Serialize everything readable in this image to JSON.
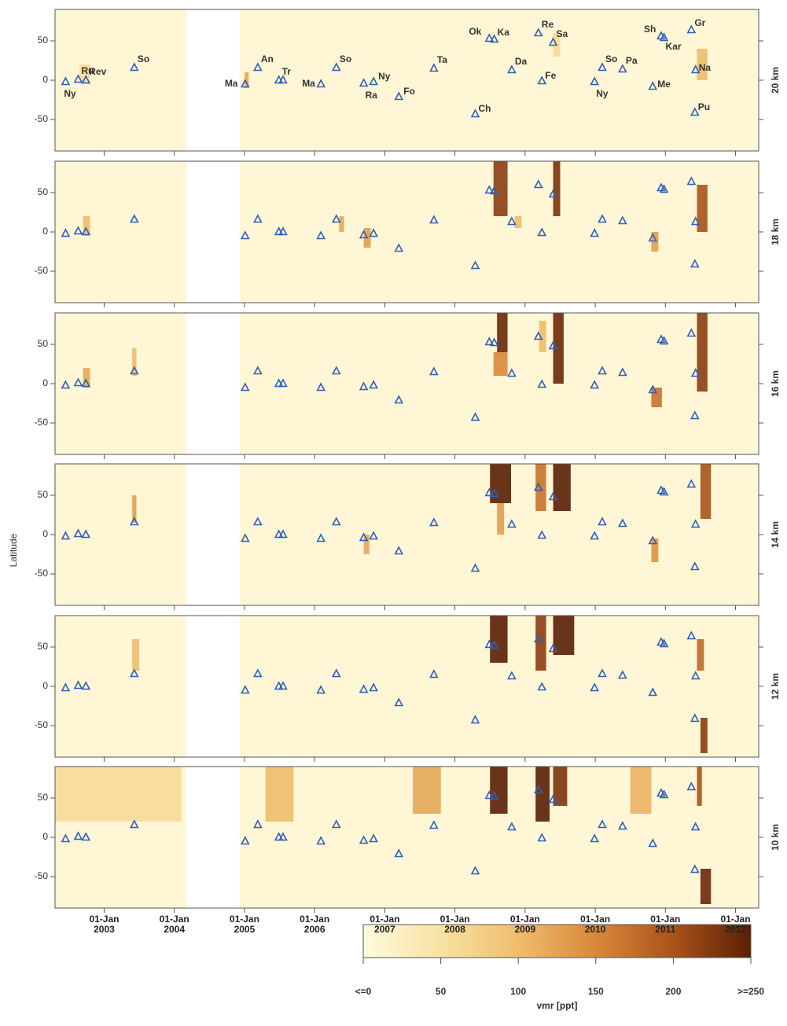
{
  "chart_data": {
    "type": "heatmap",
    "y_label": "Latitude",
    "xlim": [
      2002.3,
      2012.33
    ],
    "xticks": [
      {
        "value": 2003,
        "label": "01-Jan\n2003"
      },
      {
        "value": 2004,
        "label": "01-Jan\n2004"
      },
      {
        "value": 2005,
        "label": "01-Jan\n2005"
      },
      {
        "value": 2006,
        "label": "01-Jan\n2006"
      },
      {
        "value": 2007,
        "label": "01-Jan\n2007"
      },
      {
        "value": 2008,
        "label": "01-Jan\n2008"
      },
      {
        "value": 2009,
        "label": "01-Jan\n2009"
      },
      {
        "value": 2010,
        "label": "01-Jan\n2010"
      },
      {
        "value": 2011,
        "label": "01-Jan\n2011"
      },
      {
        "value": 2012,
        "label": "01-Jan\n2012"
      }
    ],
    "ylim": [
      -90,
      90
    ],
    "yticks": [
      -50,
      0,
      50
    ],
    "data_gaps": [
      [
        2004.17,
        2004.93
      ]
    ],
    "volcanoes": [
      {
        "name": "Ny",
        "x": 2002.45,
        "lat": -2
      },
      {
        "name": "Ru",
        "x": 2002.63,
        "lat": 1
      },
      {
        "name": "Rev",
        "x": 2002.74,
        "lat": 0
      },
      {
        "name": "So",
        "x": 2003.43,
        "lat": 16
      },
      {
        "name": "Ma",
        "x": 2005.01,
        "lat": -5
      },
      {
        "name": "An",
        "x": 2005.19,
        "lat": 16
      },
      {
        "name": "Tr",
        "x": 2005.49,
        "lat": 0
      },
      {
        "name": null,
        "x": 2005.55,
        "lat": 0
      },
      {
        "name": "Ma",
        "x": 2006.09,
        "lat": -5
      },
      {
        "name": "So",
        "x": 2006.31,
        "lat": 16
      },
      {
        "name": "Ra",
        "x": 2006.7,
        "lat": -4
      },
      {
        "name": "Ny",
        "x": 2006.84,
        "lat": -2
      },
      {
        "name": "Fo",
        "x": 2007.2,
        "lat": -21
      },
      {
        "name": "Ta",
        "x": 2007.7,
        "lat": 15
      },
      {
        "name": "Ch",
        "x": 2008.29,
        "lat": -43
      },
      {
        "name": "Ok",
        "x": 2008.49,
        "lat": 53
      },
      {
        "name": "Ka",
        "x": 2008.56,
        "lat": 52
      },
      {
        "name": "Da",
        "x": 2008.81,
        "lat": 13
      },
      {
        "name": "Re",
        "x": 2009.19,
        "lat": 60
      },
      {
        "name": "Fe",
        "x": 2009.24,
        "lat": -1
      },
      {
        "name": "Sa",
        "x": 2009.4,
        "lat": 48
      },
      {
        "name": "Ny",
        "x": 2009.99,
        "lat": -2
      },
      {
        "name": "So",
        "x": 2010.1,
        "lat": 16
      },
      {
        "name": "Pa",
        "x": 2010.39,
        "lat": 14
      },
      {
        "name": "Me",
        "x": 2010.82,
        "lat": -8
      },
      {
        "name": "Sh",
        "x": 2010.94,
        "lat": 56
      },
      {
        "name": "Kar",
        "x": 2010.98,
        "lat": 54
      },
      {
        "name": "Gr",
        "x": 2011.37,
        "lat": 64
      },
      {
        "name": "Na",
        "x": 2011.43,
        "lat": 13
      },
      {
        "name": "Pu",
        "x": 2011.42,
        "lat": -41
      }
    ],
    "panels": [
      {
        "label": "20 km",
        "plumes": [
          {
            "t0": 2002.65,
            "t1": 2002.8,
            "lat0": -5,
            "lat1": 20,
            "v": 60
          },
          {
            "t0": 2005.0,
            "t1": 2005.06,
            "lat0": -10,
            "lat1": 10,
            "v": 120
          },
          {
            "t0": 2011.45,
            "t1": 2011.6,
            "lat0": 0,
            "lat1": 40,
            "v": 100
          },
          {
            "t0": 2009.4,
            "t1": 2009.5,
            "lat0": 30,
            "lat1": 60,
            "v": 60
          }
        ]
      },
      {
        "label": "18 km",
        "plumes": [
          {
            "t0": 2002.7,
            "t1": 2002.8,
            "lat0": -5,
            "lat1": 20,
            "v": 100
          },
          {
            "t0": 2006.35,
            "t1": 2006.42,
            "lat0": 0,
            "lat1": 20,
            "v": 120
          },
          {
            "t0": 2006.7,
            "t1": 2006.8,
            "lat0": -20,
            "lat1": 5,
            "v": 130
          },
          {
            "t0": 2008.55,
            "t1": 2008.75,
            "lat0": 20,
            "lat1": 90,
            "v": 220
          },
          {
            "t0": 2008.85,
            "t1": 2008.95,
            "lat0": 5,
            "lat1": 20,
            "v": 100
          },
          {
            "t0": 2009.4,
            "t1": 2009.5,
            "lat0": 20,
            "lat1": 90,
            "v": 230
          },
          {
            "t0": 2010.8,
            "t1": 2010.9,
            "lat0": -25,
            "lat1": 0,
            "v": 130
          },
          {
            "t0": 2011.45,
            "t1": 2011.6,
            "lat0": 0,
            "lat1": 60,
            "v": 200
          }
        ]
      },
      {
        "label": "16 km",
        "plumes": [
          {
            "t0": 2002.7,
            "t1": 2002.8,
            "lat0": -5,
            "lat1": 20,
            "v": 120
          },
          {
            "t0": 2003.4,
            "t1": 2003.46,
            "lat0": 10,
            "lat1": 45,
            "v": 100
          },
          {
            "t0": 2008.55,
            "t1": 2008.75,
            "lat0": 10,
            "lat1": 40,
            "v": 150
          },
          {
            "t0": 2008.6,
            "t1": 2008.75,
            "lat0": 40,
            "lat1": 90,
            "v": 240
          },
          {
            "t0": 2009.2,
            "t1": 2009.3,
            "lat0": 40,
            "lat1": 80,
            "v": 100
          },
          {
            "t0": 2009.4,
            "t1": 2009.55,
            "lat0": 0,
            "lat1": 90,
            "v": 240
          },
          {
            "t0": 2010.8,
            "t1": 2010.95,
            "lat0": -30,
            "lat1": -5,
            "v": 170
          },
          {
            "t0": 2011.45,
            "t1": 2011.6,
            "lat0": -10,
            "lat1": 90,
            "v": 220
          }
        ]
      },
      {
        "label": "14 km",
        "plumes": [
          {
            "t0": 2003.4,
            "t1": 2003.46,
            "lat0": 15,
            "lat1": 50,
            "v": 130
          },
          {
            "t0": 2006.7,
            "t1": 2006.78,
            "lat0": -25,
            "lat1": 0,
            "v": 120
          },
          {
            "t0": 2008.6,
            "t1": 2008.7,
            "lat0": 0,
            "lat1": 40,
            "v": 130
          },
          {
            "t0": 2008.5,
            "t1": 2008.8,
            "lat0": 40,
            "lat1": 90,
            "v": 250
          },
          {
            "t0": 2009.15,
            "t1": 2009.3,
            "lat0": 30,
            "lat1": 90,
            "v": 170
          },
          {
            "t0": 2009.4,
            "t1": 2009.65,
            "lat0": 30,
            "lat1": 90,
            "v": 250
          },
          {
            "t0": 2010.8,
            "t1": 2010.9,
            "lat0": -35,
            "lat1": -5,
            "v": 140
          },
          {
            "t0": 2011.5,
            "t1": 2011.65,
            "lat0": 20,
            "lat1": 90,
            "v": 200
          }
        ]
      },
      {
        "label": "12 km",
        "plumes": [
          {
            "t0": 2003.4,
            "t1": 2003.5,
            "lat0": 20,
            "lat1": 60,
            "v": 100
          },
          {
            "t0": 2008.5,
            "t1": 2008.75,
            "lat0": 30,
            "lat1": 90,
            "v": 250
          },
          {
            "t0": 2009.15,
            "t1": 2009.3,
            "lat0": 20,
            "lat1": 90,
            "v": 220
          },
          {
            "t0": 2009.4,
            "t1": 2009.7,
            "lat0": 40,
            "lat1": 90,
            "v": 250
          },
          {
            "t0": 2011.45,
            "t1": 2011.55,
            "lat0": 20,
            "lat1": 60,
            "v": 180
          },
          {
            "t0": 2011.5,
            "t1": 2011.6,
            "lat0": -85,
            "lat1": -40,
            "v": 220
          }
        ]
      },
      {
        "label": "10 km",
        "plumes": [
          {
            "t0": 2002.3,
            "t1": 2004.1,
            "lat0": 20,
            "lat1": 90,
            "v": 60
          },
          {
            "t0": 2005.3,
            "t1": 2005.7,
            "lat0": 20,
            "lat1": 90,
            "v": 100
          },
          {
            "t0": 2007.4,
            "t1": 2007.8,
            "lat0": 30,
            "lat1": 90,
            "v": 120
          },
          {
            "t0": 2008.5,
            "t1": 2008.75,
            "lat0": 30,
            "lat1": 90,
            "v": 250
          },
          {
            "t0": 2009.15,
            "t1": 2009.35,
            "lat0": 20,
            "lat1": 90,
            "v": 250
          },
          {
            "t0": 2009.4,
            "t1": 2009.6,
            "lat0": 40,
            "lat1": 90,
            "v": 230
          },
          {
            "t0": 2010.5,
            "t1": 2010.8,
            "lat0": 30,
            "lat1": 90,
            "v": 110
          },
          {
            "t0": 2011.45,
            "t1": 2011.52,
            "lat0": 40,
            "lat1": 90,
            "v": 200
          },
          {
            "t0": 2011.5,
            "t1": 2011.65,
            "lat0": -85,
            "lat1": -40,
            "v": 240
          }
        ]
      }
    ],
    "colorbar": {
      "label": "vmr [ppt]",
      "clim": [
        0,
        250
      ],
      "ticks": [
        {
          "value": 0,
          "label": "<=0"
        },
        50,
        100,
        150,
        200,
        {
          "value": 250,
          "label": ">=250"
        }
      ]
    }
  }
}
